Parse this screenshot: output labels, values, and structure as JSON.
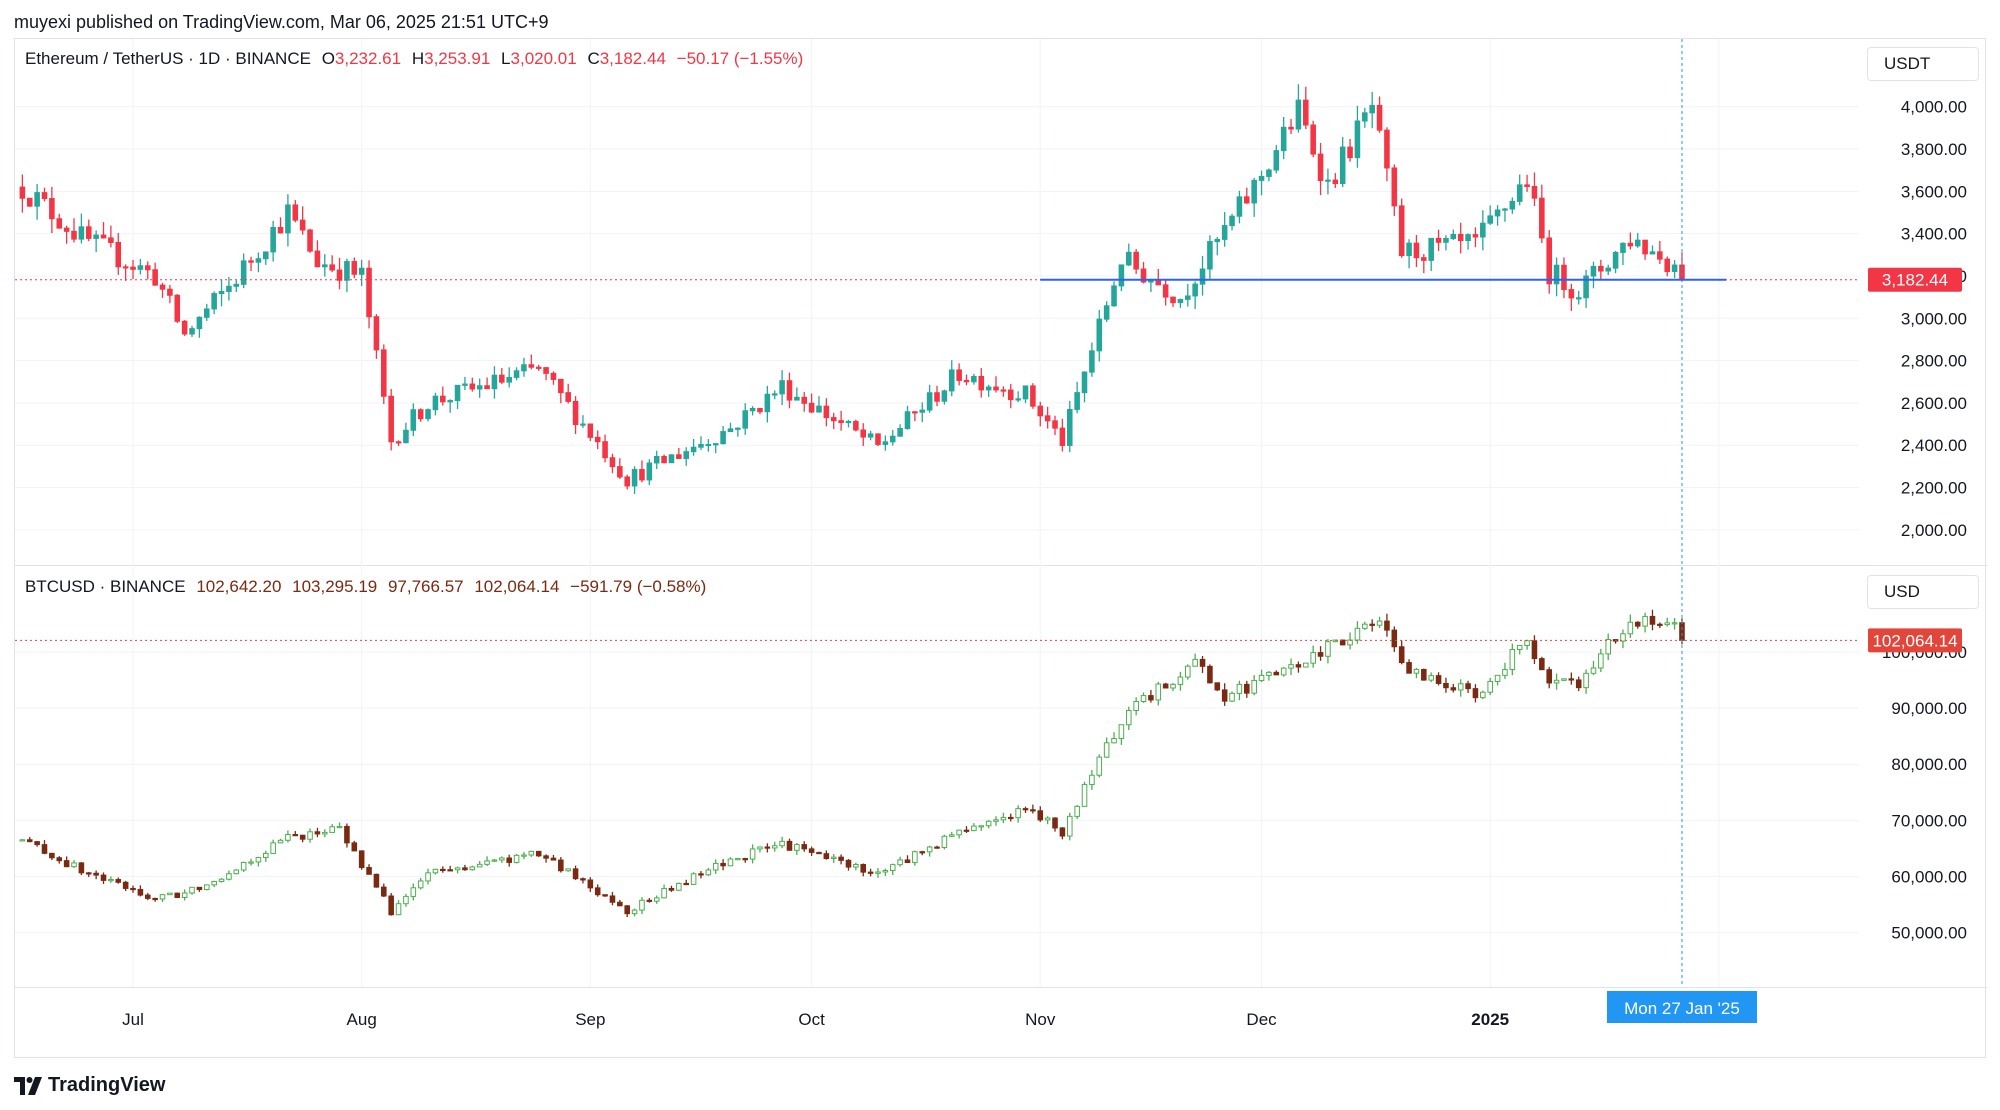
{
  "header": {
    "published_text": "muyexi published on TradingView.com, Mar 06, 2025 21:51 UTC+9"
  },
  "colors": {
    "up": "#26a69a",
    "down": "#f23645",
    "btc_up": "#4caf50",
    "btc_down": "#7a2a12",
    "grid": "#f0f3fa",
    "crosshair": "#2196f3",
    "support_line": "#2962ff"
  },
  "eth_legend": {
    "name": "Ethereum / TetherUS · 1D · BINANCE",
    "o_label": "O",
    "o_value": "3,232.61",
    "h_label": "H",
    "h_value": "3,253.91",
    "l_label": "L",
    "l_value": "3,020.01",
    "c_label": "C",
    "c_value": "3,182.44",
    "change": "−50.17 (−1.55%)"
  },
  "btc_legend": {
    "name": "BTCUSD · BINANCE",
    "o_value": "102,642.20",
    "h_value": "103,295.19",
    "l_value": "97,766.57",
    "c_value": "102,064.14",
    "change": "−591.79 (−0.58%)"
  },
  "eth_axis": {
    "unit": "USDT",
    "ticks": [
      "4,000.00",
      "3,800.00",
      "3,600.00",
      "3,400.00",
      "3,200.00",
      "3,000.00",
      "2,800.00",
      "2,600.00",
      "2,400.00",
      "2,200.00",
      "2,000.00"
    ],
    "last_price_label": "3,182.44"
  },
  "btc_axis": {
    "unit": "USD",
    "ticks": [
      "100,000.00",
      "90,000.00",
      "80,000.00",
      "70,000.00",
      "60,000.00",
      "50,000.00"
    ],
    "last_price_label": "102,064.14"
  },
  "time_axis": {
    "labels": [
      "Jul",
      "Aug",
      "Sep",
      "Oct",
      "Nov",
      "Dec",
      "2025"
    ],
    "crosshair_label": "Mon 27 Jan '25"
  },
  "footer": {
    "brand": "TradingView"
  },
  "chart_data": [
    {
      "type": "candlestick",
      "title": "Ethereum / TetherUS · 1D · BINANCE",
      "ylim": [
        1900,
        4150
      ],
      "last_price": 3182.44,
      "support_level": 3182.44,
      "keypoints": [
        [
          "2024-06-16",
          3620
        ],
        [
          "2024-06-24",
          3380
        ],
        [
          "2024-07-04",
          3200
        ],
        [
          "2024-07-08",
          2920
        ],
        [
          "2024-07-14",
          3150
        ],
        [
          "2024-07-22",
          3500
        ],
        [
          "2024-07-26",
          3270
        ],
        [
          "2024-08-01",
          3200
        ],
        [
          "2024-08-05",
          2420
        ],
        [
          "2024-08-10",
          2600
        ],
        [
          "2024-08-25",
          2760
        ],
        [
          "2024-09-06",
          2240
        ],
        [
          "2024-09-20",
          2480
        ],
        [
          "2024-09-27",
          2680
        ],
        [
          "2024-10-10",
          2390
        ],
        [
          "2024-10-21",
          2740
        ],
        [
          "2024-10-30",
          2640
        ],
        [
          "2024-11-04",
          2420
        ],
        [
          "2024-11-12",
          3280
        ],
        [
          "2024-11-20",
          3100
        ],
        [
          "2024-11-30",
          3620
        ],
        [
          "2024-12-06",
          3980
        ],
        [
          "2024-12-10",
          3630
        ],
        [
          "2024-12-16",
          4000
        ],
        [
          "2024-12-20",
          3310
        ],
        [
          "2024-12-30",
          3350
        ],
        [
          "2025-01-06",
          3660
        ],
        [
          "2025-01-09",
          3220
        ],
        [
          "2025-01-13",
          3130
        ],
        [
          "2025-01-20",
          3380
        ],
        [
          "2025-01-26",
          3250
        ],
        [
          "2025-01-27",
          3182.44
        ]
      ]
    },
    {
      "type": "candlestick",
      "title": "BTCUSD · BINANCE",
      "ylim": [
        43000,
        108000
      ],
      "last_price": 102064.14,
      "keypoints": [
        [
          "2024-06-16",
          66500
        ],
        [
          "2024-06-24",
          61000
        ],
        [
          "2024-07-04",
          56000
        ],
        [
          "2024-07-08",
          57000
        ],
        [
          "2024-07-14",
          60800
        ],
        [
          "2024-07-22",
          67000
        ],
        [
          "2024-07-29",
          68500
        ],
        [
          "2024-08-05",
          53800
        ],
        [
          "2024-08-10",
          60500
        ],
        [
          "2024-08-25",
          64000
        ],
        [
          "2024-09-06",
          54000
        ],
        [
          "2024-09-20",
          63000
        ],
        [
          "2024-09-27",
          65800
        ],
        [
          "2024-10-10",
          60500
        ],
        [
          "2024-10-21",
          68000
        ],
        [
          "2024-10-30",
          72000
        ],
        [
          "2024-11-04",
          68000
        ],
        [
          "2024-11-12",
          88000
        ],
        [
          "2024-11-22",
          98500
        ],
        [
          "2024-11-26",
          92000
        ],
        [
          "2024-12-05",
          97000
        ],
        [
          "2024-12-17",
          106000
        ],
        [
          "2024-12-20",
          97000
        ],
        [
          "2024-12-30",
          92500
        ],
        [
          "2025-01-06",
          102000
        ],
        [
          "2025-01-09",
          94000
        ],
        [
          "2025-01-13",
          94500
        ],
        [
          "2025-01-20",
          106000
        ],
        [
          "2025-01-26",
          104000
        ],
        [
          "2025-01-27",
          102064.14
        ]
      ]
    }
  ]
}
